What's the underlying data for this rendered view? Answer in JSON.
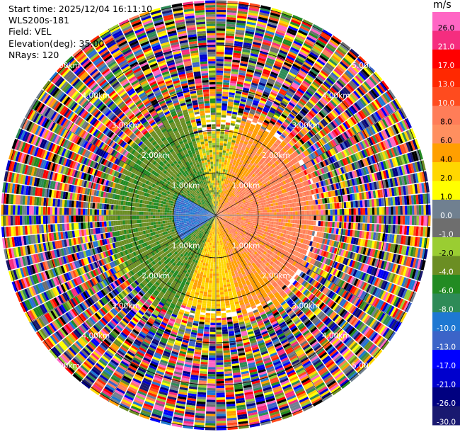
{
  "info": {
    "start_time": "Start time: 2025/12/04 16:11:10",
    "site": "WLS200s-181",
    "field": "Field: VEL",
    "elevation": "Elevation(deg): 35.00",
    "nrays": "NRays: 120"
  },
  "colorbar": {
    "unit": "m/s",
    "ticks": [
      "26.0",
      "21.0",
      "17.0",
      "13.0",
      "10.0",
      "8.0",
      "6.0",
      "4.0",
      "2.0",
      "1.0",
      "0.0",
      "-1.0",
      "-2.0",
      "-4.0",
      "-6.0",
      "-8.0",
      "-10.0",
      "-13.0",
      "-17.0",
      "-21.0",
      "-26.0",
      "-30.0"
    ],
    "colors": [
      "#ff66c4",
      "#f52d7f",
      "#ff0000",
      "#ff2800",
      "#ff4b1e",
      "#ff7d58",
      "#ff8f5f",
      "#ff9f00",
      "#ffd700",
      "#ffff00",
      "#708090",
      "#6e6e6e",
      "#9acd32",
      "#6b8e23",
      "#228b22",
      "#2e8b57",
      "#1e78d2",
      "#3c64c8",
      "#0000ff",
      "#0000cd",
      "#000080",
      "#191970"
    ]
  },
  "chart_data": {
    "type": "heatmap",
    "subtype": "polar-ppi",
    "field": "VEL",
    "unit": "m/s",
    "nrays": 120,
    "range_rings_km": [
      1,
      2,
      3,
      4,
      5
    ],
    "range_labels": [
      "1.00km",
      "2.00km",
      "3.00km",
      "4.00km",
      "5.00km"
    ],
    "spokes_deg": [
      0,
      30,
      60,
      90,
      120,
      150,
      180,
      210,
      240,
      270,
      300,
      330
    ],
    "max_range_km": 5.0,
    "velocity_levels": [
      -30,
      -26,
      -21,
      -17,
      -13,
      -10,
      -8,
      -6,
      -4,
      -2,
      -1,
      0,
      1,
      2,
      4,
      6,
      8,
      10,
      13,
      17,
      21,
      26
    ],
    "regions": [
      {
        "sector": "west-northwest",
        "range_km": [
          0,
          2.5
        ],
        "typical_velocity": -6
      },
      {
        "sector": "west",
        "range_km": [
          0,
          1
        ],
        "typical_velocity": -10
      },
      {
        "sector": "east",
        "range_km": [
          0,
          2.2
        ],
        "typical_velocity": 8
      },
      {
        "sector": "south",
        "range_km": [
          0,
          2.2
        ],
        "typical_velocity": 3
      },
      {
        "sector": "all",
        "range_km": [
          2.5,
          5.2
        ],
        "typical_velocity": "noise"
      }
    ]
  }
}
